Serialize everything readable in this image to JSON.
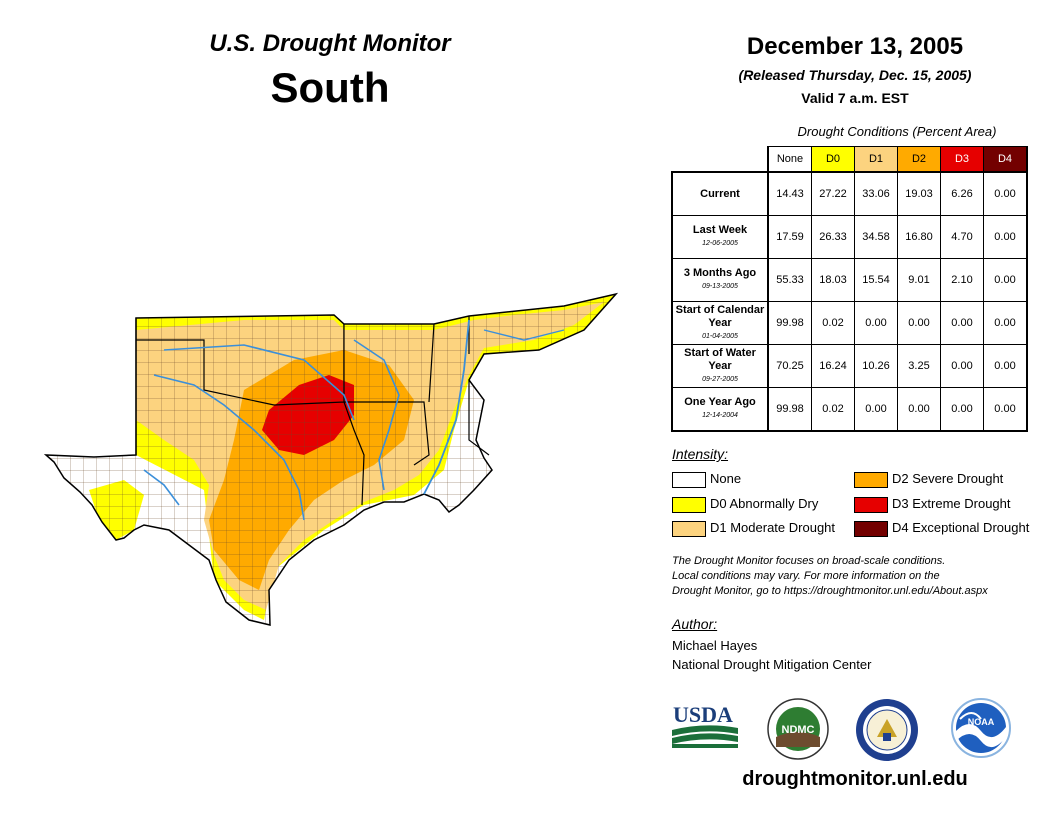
{
  "header": {
    "title": "U.S. Drought Monitor",
    "region": "South",
    "date": "December 13, 2005",
    "released": "(Released Thursday, Dec. 15, 2005)",
    "valid": "Valid 7 a.m. EST"
  },
  "table": {
    "caption": "Drought Conditions (Percent Area)",
    "columns": [
      "None",
      "D0",
      "D1",
      "D2",
      "D3",
      "D4"
    ],
    "rows": [
      {
        "label": "Current",
        "date": "",
        "values": [
          "14.43",
          "27.22",
          "33.06",
          "19.03",
          "6.26",
          "0.00"
        ]
      },
      {
        "label": "Last Week",
        "date": "12-06-2005",
        "values": [
          "17.59",
          "26.33",
          "34.58",
          "16.80",
          "4.70",
          "0.00"
        ]
      },
      {
        "label": "3 Months Ago",
        "date": "09-13-2005",
        "values": [
          "55.33",
          "18.03",
          "15.54",
          "9.01",
          "2.10",
          "0.00"
        ]
      },
      {
        "label": "Start of Calendar Year",
        "date": "01-04-2005",
        "values": [
          "99.98",
          "0.02",
          "0.00",
          "0.00",
          "0.00",
          "0.00"
        ]
      },
      {
        "label": "Start of Water Year",
        "date": "09-27-2005",
        "values": [
          "70.25",
          "16.24",
          "10.26",
          "3.25",
          "0.00",
          "0.00"
        ]
      },
      {
        "label": "One Year Ago",
        "date": "12-14-2004",
        "values": [
          "99.98",
          "0.02",
          "0.00",
          "0.00",
          "0.00",
          "0.00"
        ]
      }
    ]
  },
  "legend": {
    "title": "Intensity:",
    "items": [
      {
        "label": "None",
        "color": "#ffffff"
      },
      {
        "label": "D0 Abnormally Dry",
        "color": "#ffff00"
      },
      {
        "label": "D1 Moderate Drought",
        "color": "#fcd37f"
      },
      {
        "label": "D2 Severe Drought",
        "color": "#ffaa00"
      },
      {
        "label": "D3 Extreme Drought",
        "color": "#e60000"
      },
      {
        "label": "D4 Exceptional Drought",
        "color": "#730000"
      }
    ]
  },
  "note": {
    "line1": "The Drought Monitor focuses on broad-scale conditions.",
    "line2": "Local conditions may vary. For more information on the",
    "line3": "Drought Monitor, go to https://droughtmonitor.unl.edu/About.aspx"
  },
  "author": {
    "title": "Author:",
    "name": "Michael Hayes",
    "org": "National Drought Mitigation Center"
  },
  "logos": {
    "usda": "USDA",
    "ndmc": "NDMC",
    "noaa": "NOAA"
  },
  "footer": {
    "url": "droughtmonitor.unl.edu"
  }
}
